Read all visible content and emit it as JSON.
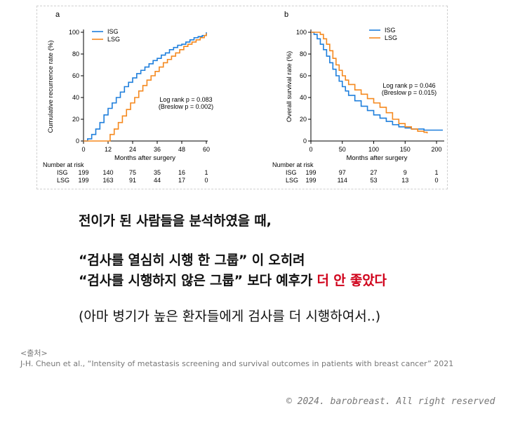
{
  "chart_data": [
    {
      "type": "line",
      "panel_label": "a",
      "ylabel": "Cumulative recurrence rate (%)",
      "xlabel": "Months after surgery",
      "xlim": [
        0,
        60
      ],
      "ylim": [
        0,
        100
      ],
      "xticks": [
        0,
        12,
        24,
        36,
        48,
        60
      ],
      "yticks": [
        0,
        20,
        40,
        60,
        80,
        100
      ],
      "legend_position": "top-left",
      "annotation": [
        "Log rank p = 0.083",
        "(Breslow p = 0.002)"
      ],
      "series": [
        {
          "name": "ISG",
          "color": "#1f7fdc",
          "x": [
            0,
            2,
            4,
            6,
            8,
            10,
            12,
            14,
            16,
            18,
            20,
            22,
            24,
            26,
            28,
            30,
            32,
            34,
            36,
            38,
            40,
            42,
            44,
            46,
            48,
            50,
            52,
            54,
            56,
            58,
            60
          ],
          "y": [
            0,
            2,
            6,
            11,
            17,
            24,
            30,
            35,
            40,
            45,
            50,
            54,
            58,
            62,
            65,
            68,
            71,
            74,
            76,
            79,
            81,
            84,
            86,
            88,
            89,
            91,
            93,
            95,
            96,
            97,
            100
          ]
        },
        {
          "name": "LSG",
          "color": "#f5891f",
          "x": [
            0,
            12,
            13,
            15,
            17,
            19,
            21,
            23,
            25,
            27,
            29,
            31,
            33,
            35,
            37,
            39,
            41,
            43,
            45,
            47,
            49,
            51,
            53,
            55,
            57,
            59,
            60
          ],
          "y": [
            0,
            0,
            6,
            11,
            17,
            23,
            29,
            35,
            40,
            46,
            51,
            56,
            60,
            64,
            68,
            72,
            75,
            78,
            81,
            84,
            87,
            89,
            91,
            93,
            95,
            97,
            99
          ]
        }
      ],
      "risk_table": {
        "title": "Number at risk",
        "rows": [
          {
            "label": "ISG",
            "values": [
              "199",
              "140",
              "75",
              "35",
              "16",
              "1"
            ]
          },
          {
            "label": "LSG",
            "values": [
              "199",
              "163",
              "91",
              "44",
              "17",
              "0"
            ]
          }
        ]
      }
    },
    {
      "type": "line",
      "panel_label": "b",
      "ylabel": "Overall survival rate (%)",
      "xlabel": "Months after surgery",
      "xlim": [
        0,
        210
      ],
      "ylim": [
        0,
        100
      ],
      "xticks": [
        0,
        50,
        100,
        150,
        200
      ],
      "yticks": [
        0,
        20,
        40,
        60,
        80,
        100
      ],
      "legend_position": "top-right",
      "annotation": [
        "Log rank p = 0.046",
        "(Breslow p = 0.015)"
      ],
      "series": [
        {
          "name": "ISG",
          "color": "#1f7fdc",
          "x": [
            0,
            5,
            10,
            15,
            20,
            25,
            30,
            35,
            40,
            45,
            50,
            55,
            60,
            70,
            80,
            90,
            100,
            110,
            120,
            130,
            140,
            150,
            160,
            170,
            180,
            190,
            200,
            210
          ],
          "y": [
            100,
            98,
            94,
            89,
            84,
            78,
            72,
            66,
            60,
            55,
            50,
            46,
            42,
            37,
            32,
            28,
            24,
            21,
            18,
            15,
            13,
            12,
            11,
            11,
            10,
            10,
            10,
            10
          ]
        },
        {
          "name": "LSG",
          "color": "#f5891f",
          "x": [
            0,
            10,
            15,
            20,
            25,
            30,
            35,
            40,
            45,
            50,
            55,
            60,
            70,
            80,
            90,
            100,
            110,
            120,
            130,
            140,
            150,
            160,
            170,
            180,
            185
          ],
          "y": [
            100,
            100,
            98,
            94,
            89,
            83,
            76,
            70,
            65,
            60,
            56,
            52,
            47,
            43,
            39,
            35,
            31,
            26,
            20,
            16,
            13,
            11,
            9,
            8,
            7
          ]
        }
      ],
      "risk_table": {
        "title": "Number at risk",
        "rows": [
          {
            "label": "ISG",
            "values": [
              "199",
              "97",
              "27",
              "9",
              "1"
            ]
          },
          {
            "label": "LSG",
            "values": [
              "199",
              "114",
              "53",
              "13",
              "0"
            ]
          }
        ]
      }
    }
  ],
  "text": {
    "line1": "전이가 된 사람들을 분석하였을 때,",
    "line2": "“검사를 열심히 시행 한 그룹” 이 오히려",
    "line3_before": "“검사를 시행하지 않은 그룹” 보다 예후가 ",
    "line3_highlight": "더 안 좋았다",
    "line4": "(아마 병기가 높은 환자들에게 검사를 더 시행하여서..)",
    "source_label": "<출처>",
    "source_citation": "J-H. Cheun et al., “Intensity of metastasis screening and survival outcomes in patients with breast cancer” 2021",
    "copyright": "© 2024. barobreast. All right reserved"
  },
  "colors": {
    "highlight": "#d0021b",
    "isg": "#1f7fdc",
    "lsg": "#f5891f"
  }
}
